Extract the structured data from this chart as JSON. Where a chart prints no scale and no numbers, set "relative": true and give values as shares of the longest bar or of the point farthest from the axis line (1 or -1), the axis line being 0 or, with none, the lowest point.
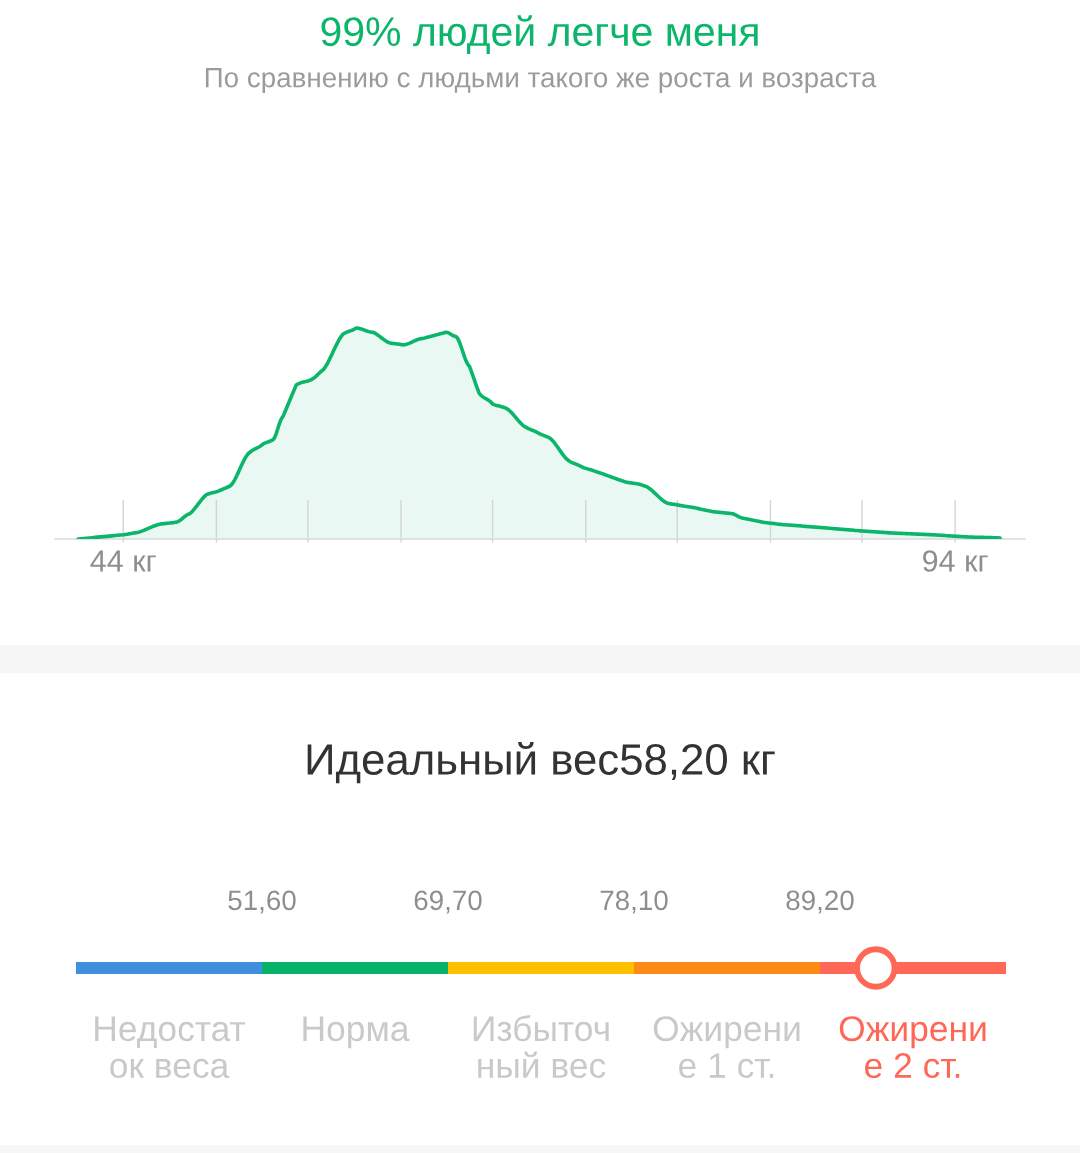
{
  "chart_data": [
    {
      "type": "area",
      "title": "99% людей легче меня",
      "subtitle": "По сравнению с людьми такого же роста и возраста",
      "relative": true,
      "x": [
        41.3,
        44.0,
        44.8,
        46.2,
        47.2,
        48.0,
        49.0,
        49.8,
        50.4,
        51.6,
        52.4,
        53.0,
        53.6,
        54.4,
        55.4,
        56.0,
        57.2,
        58.0,
        59.0,
        60.0,
        60.8,
        62.0,
        63.4,
        64.0,
        64.8,
        65.4,
        66.2,
        67.0,
        68.2,
        69.0,
        69.6,
        70.8,
        71.6,
        72.4,
        74.2,
        75.0,
        75.4,
        76.7,
        77.4,
        78.2,
        79.4,
        80.6,
        81.2,
        82.4,
        83.4,
        85.0,
        86.6,
        88.1,
        89.9,
        92.6,
        94.7,
        96.7
      ],
      "series": [
        {
          "color": "#0bb56a",
          "values": [
            0,
            0.02,
            0.03,
            0.07,
            0.08,
            0.12,
            0.21,
            0.23,
            0.25,
            0.41,
            0.45,
            0.47,
            0.58,
            0.73,
            0.76,
            0.8,
            0.97,
            1,
            0.98,
            0.93,
            0.92,
            0.95,
            0.98,
            0.96,
            0.82,
            0.69,
            0.64,
            0.62,
            0.53,
            0.5,
            0.48,
            0.37,
            0.34,
            0.32,
            0.27,
            0.26,
            0.25,
            0.17,
            0.16,
            0.15,
            0.13,
            0.12,
            0.1,
            0.08,
            0.07,
            0.06,
            0.05,
            0.04,
            0.03,
            0.02,
            0.01,
            0.005
          ]
        }
      ],
      "xlim": [
        39.9,
        98.2
      ],
      "xticks": [
        {
          "value": 44,
          "label": "44 кг"
        },
        {
          "value": 49.6,
          "label": null
        },
        {
          "value": 55.1,
          "label": null
        },
        {
          "value": 60.7,
          "label": null
        },
        {
          "value": 66.2,
          "label": null
        },
        {
          "value": 71.8,
          "label": null
        },
        {
          "value": 77.3,
          "label": null
        },
        {
          "value": 82.9,
          "label": null
        },
        {
          "value": 88.4,
          "label": null
        },
        {
          "value": 94,
          "label": "94 кг"
        }
      ]
    },
    {
      "type": "other",
      "title": "Идеальный вес58,20 кг",
      "categories": [
        "Недостат\nок веса",
        "Норма",
        "Избыточ\nный вес",
        "Ожирени\nе 1 ст.",
        null
      ],
      "colors": [
        "#3f8fdf",
        "#07b36a",
        "#fdc100",
        "#fd8a14",
        "#ff6757"
      ],
      "annotations": [
        "51,60",
        "69,70",
        "78,10",
        "89,20"
      ],
      "needle": "Ожирени\nе 2 ст."
    }
  ]
}
